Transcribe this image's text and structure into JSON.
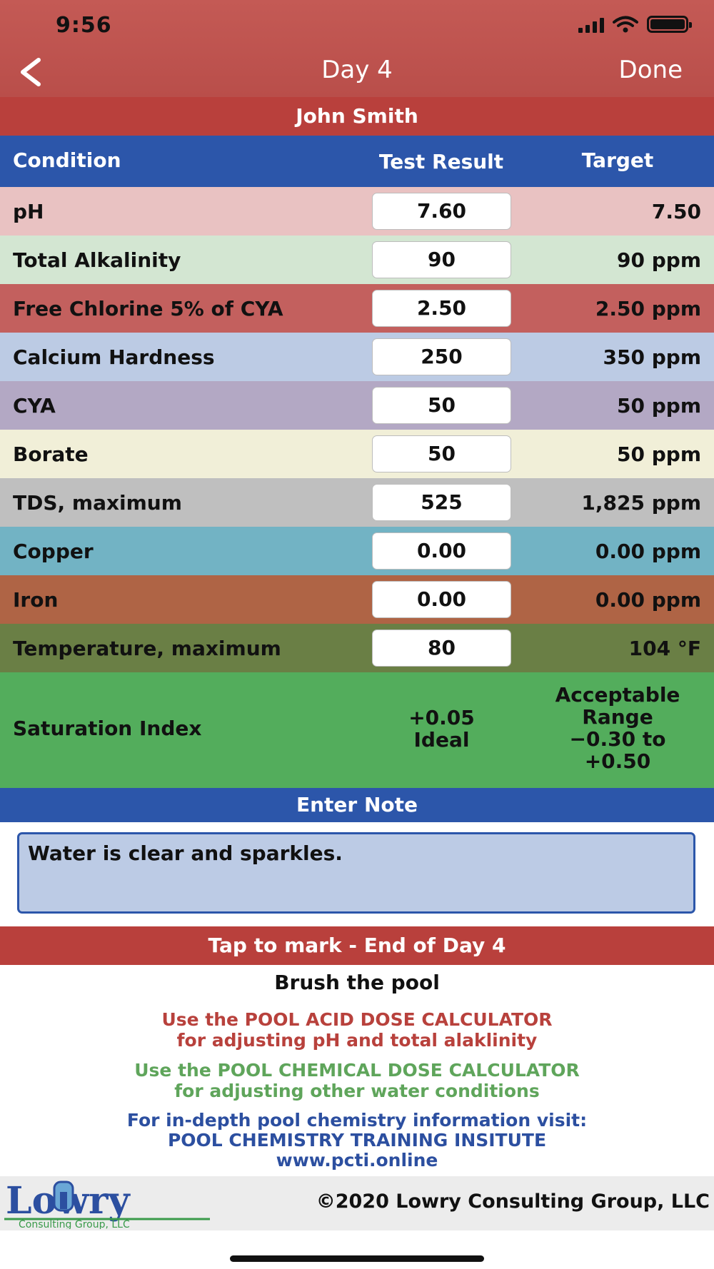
{
  "status": {
    "time": "9:56"
  },
  "nav": {
    "title": "Day 4",
    "done_label": "Done",
    "back_icon": "chevron-left-icon"
  },
  "user": {
    "name": "John Smith"
  },
  "table": {
    "headers": {
      "condition": "Condition",
      "result": "Test Result",
      "target": "Target"
    },
    "rows": [
      {
        "label": "pH",
        "result": "7.60",
        "target": "7.50",
        "bg": "#e9c2c2",
        "fg": "#111111"
      },
      {
        "label": "Total Alkalinity",
        "result": "90",
        "target": "90 ppm",
        "bg": "#d3e6d2",
        "fg": "#111111"
      },
      {
        "label": "Free Chlorine 5% of CYA",
        "result": "2.50",
        "target": "2.50 ppm",
        "bg": "#c3605e",
        "fg": "#111111"
      },
      {
        "label": "Calcium Hardness",
        "result": "250",
        "target": "350 ppm",
        "bg": "#bccbe4",
        "fg": "#111111"
      },
      {
        "label": "CYA",
        "result": "50",
        "target": "50 ppm",
        "bg": "#b3a8c4",
        "fg": "#111111"
      },
      {
        "label": "Borate",
        "result": "50",
        "target": "50 ppm",
        "bg": "#f1efd8",
        "fg": "#111111"
      },
      {
        "label": "TDS, maximum",
        "result": "525",
        "target": "1,825 ppm",
        "bg": "#bfbfbf",
        "fg": "#111111"
      },
      {
        "label": "Copper",
        "result": "0.00",
        "target": "0.00 ppm",
        "bg": "#72b3c4",
        "fg": "#111111"
      },
      {
        "label": "Iron",
        "result": "0.00",
        "target": "0.00 ppm",
        "bg": "#af6445",
        "fg": "#111111"
      },
      {
        "label": "Temperature, maximum",
        "result": "80",
        "target": "104 °F",
        "bg": "#6a7f45",
        "fg": "#111111"
      }
    ],
    "saturation": {
      "label": "Saturation Index",
      "value_line1": "+0.05",
      "value_line2": "Ideal",
      "range_line1": "Acceptable",
      "range_line2": "Range",
      "range_line3": "−0.30 to",
      "range_line4": "+0.50"
    }
  },
  "note": {
    "header": "Enter Note",
    "text": "Water is clear and sparkles."
  },
  "mark": {
    "label": "Tap to mark - End of Day 4"
  },
  "info": {
    "brush": "Brush the pool",
    "acid_line1": "Use the POOL ACID DOSE CALCULATOR",
    "acid_line2": "for adjusting pH and total alaklinity",
    "chem_line1": "Use the POOL CHEMICAL DOSE CALCULATOR",
    "chem_line2": "for adjusting other water conditions",
    "train_line1": "For in-depth pool chemistry information visit:",
    "train_line2": "POOL CHEMISTRY TRAINING INSITUTE",
    "train_line3": "www.pcti.online"
  },
  "footer": {
    "logo_text": "Lowry",
    "logo_sub": "Consulting Group, LLC",
    "copyright": "©2020 Lowry Consulting Group, LLC"
  },
  "colors": {
    "nav_red": "#c45a55",
    "bar_red": "#b9403c",
    "header_blue": "#2c56aa",
    "saturation_green": "#53ad5c",
    "acid_text": "#b8413c",
    "chem_text": "#5fa55b",
    "train_text": "#2c4fa0"
  }
}
